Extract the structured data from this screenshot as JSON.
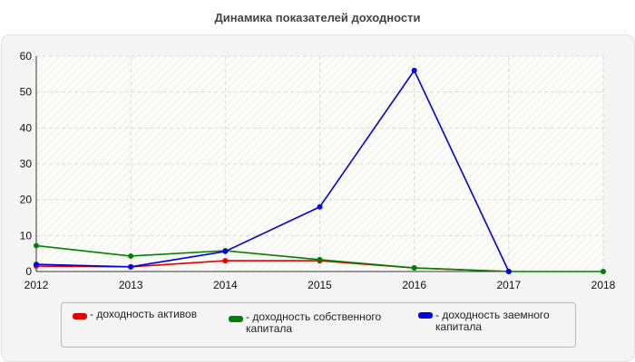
{
  "chart_data": {
    "type": "line",
    "title": "Динамика показателей доходности",
    "categories": [
      "2012",
      "2013",
      "2014",
      "2015",
      "2016",
      "2017",
      "2018"
    ],
    "ylim": [
      0,
      60
    ],
    "yticks": [
      "0",
      "10",
      "20",
      "30",
      "40",
      "50",
      "60"
    ],
    "grid": true,
    "legend_position": "bottom",
    "series": [
      {
        "name": "- доходность активов",
        "color": "#e00000",
        "values": [
          1.5,
          1.3,
          3.0,
          3.0,
          1.0,
          0,
          null
        ]
      },
      {
        "name": "- доходность собственного капитала",
        "color": "#008000",
        "values": [
          7.2,
          4.3,
          5.8,
          3.3,
          1.0,
          0,
          0
        ]
      },
      {
        "name": "- доходность заемного капитала",
        "color": "#0000e0",
        "values": [
          2.0,
          1.3,
          5.6,
          18.0,
          56.0,
          0,
          null
        ]
      }
    ]
  }
}
